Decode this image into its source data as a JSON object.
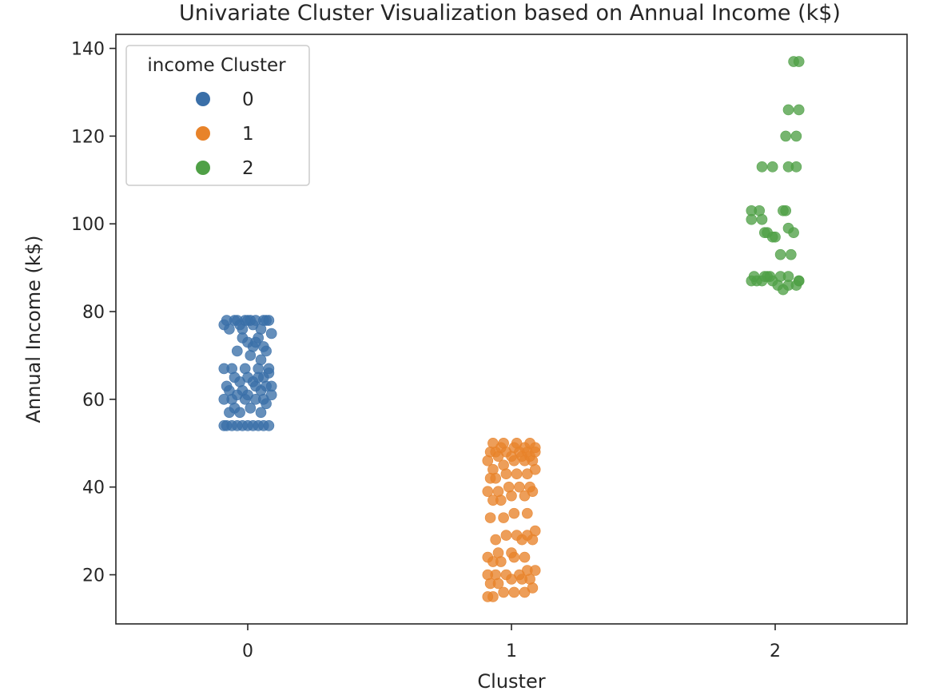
{
  "chart_data": {
    "type": "scatter",
    "title": "Univariate Cluster Visualization based on Annual Income (k$)",
    "xlabel": "Cluster",
    "ylabel": "Annual Income (k$)",
    "categories": [
      "0",
      "1",
      "2"
    ],
    "xlim": [
      -0.5,
      2.5
    ],
    "ylim": [
      8.8,
      143.2
    ],
    "yticks": [
      20,
      40,
      60,
      80,
      100,
      120,
      140
    ],
    "grid": false,
    "legend": {
      "title": "income Cluster",
      "placement": "upper-left",
      "entries": [
        {
          "label": "0",
          "color": "#3a6fa8"
        },
        {
          "label": "1",
          "color": "#e8832a"
        },
        {
          "label": "2",
          "color": "#4fa046"
        }
      ]
    },
    "series": [
      {
        "name": "0",
        "color": "#3a6fa8",
        "x": [
          -0.09,
          -0.08,
          -0.06,
          -0.04,
          -0.02,
          0.0,
          0.02,
          0.04,
          0.06,
          0.08,
          -0.07,
          -0.03,
          0.05,
          -0.05,
          0.01,
          0.07,
          -0.09,
          -0.06,
          -0.01,
          0.03,
          0.06,
          0.09,
          -0.04,
          0.0,
          0.05,
          -0.07,
          -0.02,
          0.03,
          0.07,
          0.09,
          -0.08,
          -0.03,
          0.02,
          0.06,
          -0.05,
          0.0,
          0.04,
          0.08,
          -0.09,
          -0.06,
          -0.01,
          0.04,
          0.08,
          0.05,
          0.01,
          0.07,
          -0.04,
          0.02,
          0.06,
          0.0,
          0.03,
          -0.02,
          0.04,
          0.09,
          -0.07,
          -0.02,
          0.05,
          -0.09,
          -0.03,
          0.02,
          0.07,
          -0.05,
          0.0,
          0.06,
          -0.08,
          -0.04,
          0.01,
          0.03,
          0.08,
          -0.01
        ],
        "y": [
          54,
          54,
          54,
          54,
          54,
          54,
          54,
          54,
          54,
          54,
          57,
          57,
          57,
          58,
          58,
          59,
          60,
          60,
          60,
          60,
          60,
          61,
          61,
          61,
          62,
          62,
          62,
          63,
          63,
          63,
          63,
          64,
          64,
          65,
          65,
          65,
          65,
          66,
          67,
          67,
          67,
          67,
          67,
          69,
          70,
          71,
          71,
          72,
          72,
          73,
          73,
          74,
          74,
          75,
          76,
          76,
          76,
          77,
          77,
          77,
          78,
          78,
          78,
          78,
          78,
          78,
          78,
          78,
          78,
          78
        ]
      },
      {
        "name": "1",
        "color": "#e8832a",
        "x": [
          -0.09,
          -0.07,
          -0.03,
          0.01,
          0.05,
          0.08,
          -0.08,
          -0.05,
          0.0,
          0.04,
          0.07,
          -0.09,
          -0.06,
          -0.02,
          0.03,
          0.06,
          0.09,
          -0.07,
          -0.04,
          0.01,
          0.05,
          -0.09,
          -0.05,
          0.0,
          0.04,
          0.08,
          -0.06,
          -0.02,
          0.02,
          0.06,
          0.09,
          -0.08,
          -0.03,
          0.01,
          0.06,
          -0.07,
          -0.04,
          0.0,
          0.05,
          0.08,
          -0.09,
          -0.05,
          -0.01,
          0.03,
          0.07,
          -0.08,
          -0.06,
          -0.02,
          0.02,
          0.06,
          0.09,
          -0.07,
          -0.03,
          0.01,
          0.05,
          0.08,
          -0.09,
          -0.05,
          0.0,
          0.04,
          0.07,
          -0.06,
          -0.02,
          0.03,
          0.06,
          -0.08,
          -0.04,
          0.01,
          0.05,
          0.09,
          -0.07,
          -0.03,
          0.02,
          0.07,
          0.09
        ],
        "y": [
          15,
          15,
          16,
          16,
          16,
          17,
          18,
          18,
          19,
          19,
          19,
          20,
          20,
          20,
          20,
          21,
          21,
          23,
          23,
          24,
          24,
          24,
          25,
          25,
          28,
          28,
          28,
          29,
          29,
          29,
          30,
          33,
          33,
          34,
          34,
          37,
          37,
          38,
          38,
          39,
          39,
          39,
          40,
          40,
          40,
          42,
          42,
          43,
          43,
          43,
          44,
          44,
          45,
          46,
          46,
          46,
          46,
          47,
          47,
          47,
          47,
          48,
          48,
          48,
          48,
          48,
          49,
          49,
          49,
          49,
          50,
          50,
          50,
          50,
          48
        ]
      },
      {
        "name": "2",
        "color": "#4fa046",
        "x": [
          -0.09,
          -0.07,
          -0.05,
          -0.03,
          -0.01,
          0.01,
          0.03,
          0.05,
          0.08,
          0.09,
          -0.02,
          0.02,
          0.09,
          -0.08,
          -0.04,
          0.05,
          -0.09,
          -0.05,
          0.02,
          0.06,
          -0.03,
          -0.01,
          0.07,
          -0.09,
          -0.06,
          0.04,
          0.03,
          0.05,
          -0.04,
          0.0,
          0.05,
          0.08,
          0.04,
          0.08,
          0.05,
          0.09
        ],
        "y": [
          87,
          87,
          87,
          88,
          87,
          86,
          85,
          86,
          86,
          87,
          88,
          88,
          87,
          88,
          88,
          88,
          101,
          101,
          93,
          93,
          98,
          97,
          98,
          103,
          103,
          103,
          103,
          99,
          98,
          97,
          113,
          113,
          120,
          120,
          126,
          126
        ]
      }
    ],
    "extra_points": [
      {
        "series": "2",
        "x": [
          0.07,
          0.09,
          -0.05,
          -0.01
        ],
        "y": [
          137,
          137,
          113,
          113
        ]
      }
    ]
  }
}
